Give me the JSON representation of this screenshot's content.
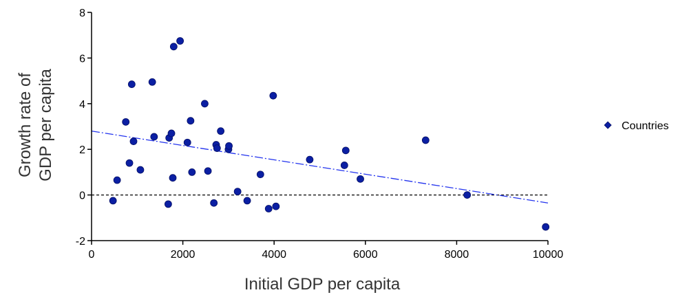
{
  "chart_data": {
    "type": "scatter",
    "xlabel": "Initial GDP per capita",
    "ylabel_lines": [
      "Growth rate of",
      "GDP per capita"
    ],
    "xlim": [
      0,
      10000
    ],
    "ylim": [
      -2,
      8
    ],
    "x_ticks": [
      0,
      2000,
      4000,
      6000,
      8000,
      10000
    ],
    "y_ticks": [
      -2,
      0,
      2,
      4,
      6,
      8
    ],
    "grid": false,
    "legend_placement": "right",
    "colors": {
      "points": "#0b1fa3",
      "point_edge": "#050f66",
      "trend": "#2233ee",
      "zero_line": "#000000"
    },
    "series": [
      {
        "name": "Countries",
        "points": [
          [
            470,
            -0.25
          ],
          [
            560,
            0.65
          ],
          [
            750,
            3.2
          ],
          [
            830,
            1.4
          ],
          [
            880,
            4.85
          ],
          [
            920,
            2.35
          ],
          [
            1070,
            1.1
          ],
          [
            1330,
            4.95
          ],
          [
            1370,
            2.55
          ],
          [
            1680,
            -0.4
          ],
          [
            1700,
            2.5
          ],
          [
            1750,
            2.7
          ],
          [
            1780,
            0.75
          ],
          [
            1800,
            6.5
          ],
          [
            1940,
            6.75
          ],
          [
            2100,
            2.3
          ],
          [
            2170,
            3.25
          ],
          [
            2200,
            1.0
          ],
          [
            2480,
            4.0
          ],
          [
            2550,
            1.05
          ],
          [
            2680,
            -0.35
          ],
          [
            2730,
            2.2
          ],
          [
            2750,
            2.05
          ],
          [
            2830,
            2.8
          ],
          [
            3000,
            2.0
          ],
          [
            3010,
            2.15
          ],
          [
            3200,
            0.15
          ],
          [
            3410,
            -0.25
          ],
          [
            3700,
            0.9
          ],
          [
            3880,
            -0.6
          ],
          [
            3980,
            4.35
          ],
          [
            4040,
            -0.5
          ],
          [
            4780,
            1.55
          ],
          [
            5540,
            1.3
          ],
          [
            5570,
            1.95
          ],
          [
            5890,
            0.7
          ],
          [
            7320,
            2.4
          ],
          [
            8230,
            0.0
          ],
          [
            9950,
            -1.4
          ]
        ]
      }
    ],
    "trend_line": {
      "x": [
        0,
        10000
      ],
      "y": [
        2.8,
        -0.35
      ]
    },
    "reference_line_y": 0
  }
}
